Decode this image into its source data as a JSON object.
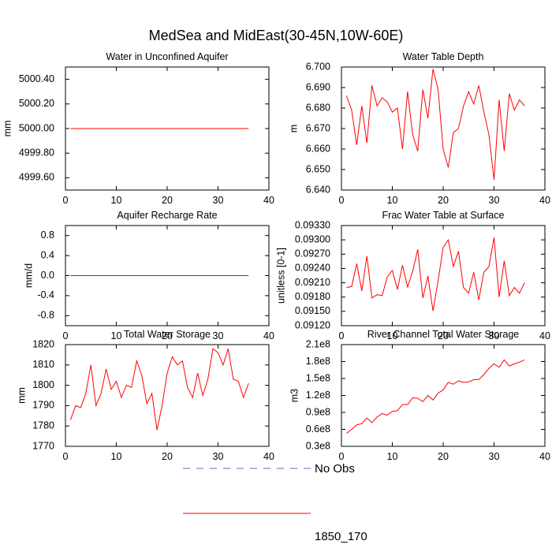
{
  "figure": {
    "title": "MedSea and MidEast(30-45N,10W-60E)",
    "legend": [
      {
        "label": "No Obs",
        "color": "#6666cc",
        "style": "dashed"
      },
      {
        "label": "1850_170",
        "color": "#ff0000",
        "style": "solid"
      }
    ]
  },
  "chart_data": [
    {
      "type": "line",
      "title": "Water in Unconfined Aquifer",
      "ylabel": "mm",
      "xlim": [
        0,
        40
      ],
      "xticks": [
        0,
        10,
        20,
        30,
        40
      ],
      "xtick_labels": [
        "0",
        "10",
        "20",
        "30",
        "40"
      ],
      "ylim": [
        4999.5,
        5000.5
      ],
      "yticks": [
        4999.6,
        4999.8,
        5000.0,
        5000.2,
        5000.4
      ],
      "ytick_labels": [
        "4999.60",
        "4999.80",
        "5000.00",
        "5000.20",
        "5000.40"
      ],
      "series": [
        {
          "name": "1850_170",
          "color": "#ff0000",
          "x": [
            1,
            36
          ],
          "y": [
            5000.0,
            5000.0
          ]
        }
      ]
    },
    {
      "type": "line",
      "title": "Water Table Depth",
      "ylabel": "m",
      "xlim": [
        0,
        40
      ],
      "xticks": [
        0,
        10,
        20,
        30,
        40
      ],
      "xtick_labels": [
        "0",
        "10",
        "20",
        "30",
        "40"
      ],
      "ylim": [
        6.64,
        6.7
      ],
      "yticks": [
        6.64,
        6.65,
        6.66,
        6.67,
        6.68,
        6.69,
        6.7
      ],
      "ytick_labels": [
        "6.640",
        "6.650",
        "6.660",
        "6.670",
        "6.680",
        "6.690",
        "6.700"
      ],
      "series": [
        {
          "name": "1850_170",
          "color": "#ff0000",
          "x": [
            1,
            2,
            3,
            4,
            5,
            6,
            7,
            8,
            9,
            10,
            11,
            12,
            13,
            14,
            15,
            16,
            17,
            18,
            19,
            20,
            21,
            22,
            23,
            24,
            25,
            26,
            27,
            28,
            29,
            30,
            31,
            32,
            33,
            34,
            35,
            36
          ],
          "y": [
            6.686,
            6.679,
            6.662,
            6.681,
            6.663,
            6.691,
            6.681,
            6.685,
            6.683,
            6.678,
            6.68,
            6.66,
            6.688,
            6.667,
            6.659,
            6.689,
            6.675,
            6.699,
            6.689,
            6.66,
            6.651,
            6.668,
            6.67,
            6.681,
            6.688,
            6.682,
            6.691,
            6.678,
            6.667,
            6.645,
            6.684,
            6.659,
            6.687,
            6.679,
            6.684,
            6.681
          ]
        }
      ]
    },
    {
      "type": "line",
      "title": "Aquifer Recharge Rate",
      "ylabel": "mm/d",
      "xlim": [
        0,
        40
      ],
      "xticks": [
        0,
        10,
        20,
        30,
        40
      ],
      "xtick_labels": [
        "0",
        "10",
        "20",
        "30",
        "40"
      ],
      "ylim": [
        -1.0,
        1.0
      ],
      "yticks": [
        -0.8,
        -0.4,
        0.0,
        0.4,
        0.8
      ],
      "ytick_labels": [
        "-0.8",
        "-0.4",
        "0.0",
        "0.4",
        "0.8"
      ],
      "series": [
        {
          "name": "1850_170",
          "color": "#ff0000",
          "x": [
            1,
            36
          ],
          "y": [
            0.0,
            0.0
          ]
        }
      ]
    },
    {
      "type": "line",
      "title": "Frac Water Table at Surface",
      "ylabel": "unitless [0-1]",
      "xlim": [
        0,
        40
      ],
      "xticks": [
        0,
        10,
        20,
        30,
        40
      ],
      "xtick_labels": [
        "0",
        "10",
        "20",
        "30",
        "40"
      ],
      "ylim": [
        0.0912,
        0.0933
      ],
      "yticks": [
        0.0912,
        0.0915,
        0.0918,
        0.0921,
        0.0924,
        0.0927,
        0.093,
        0.0933
      ],
      "ytick_labels": [
        "0.09120",
        "0.09150",
        "0.09180",
        "0.09210",
        "0.09240",
        "0.09270",
        "0.09300",
        "0.09330"
      ],
      "series": [
        {
          "name": "1850_170",
          "color": "#ff0000",
          "x": [
            1,
            2,
            3,
            4,
            5,
            6,
            7,
            8,
            9,
            10,
            11,
            12,
            13,
            14,
            15,
            16,
            17,
            18,
            19,
            20,
            21,
            22,
            23,
            24,
            25,
            26,
            27,
            28,
            29,
            30,
            31,
            32,
            33,
            34,
            35,
            36
          ],
          "y": [
            0.092,
            0.09202,
            0.0925,
            0.09193,
            0.09266,
            0.09178,
            0.09185,
            0.09183,
            0.09222,
            0.09236,
            0.09196,
            0.09247,
            0.09201,
            0.09234,
            0.0928,
            0.09178,
            0.09224,
            0.09151,
            0.09214,
            0.09284,
            0.093,
            0.09244,
            0.09276,
            0.092,
            0.09188,
            0.09232,
            0.09174,
            0.09232,
            0.09244,
            0.09305,
            0.0918,
            0.09256,
            0.09183,
            0.092,
            0.09188,
            0.0921
          ]
        }
      ]
    },
    {
      "type": "line",
      "title": "Total Water Storage",
      "ylabel": "mm",
      "xlim": [
        0,
        40
      ],
      "xticks": [
        0,
        10,
        20,
        30,
        40
      ],
      "xtick_labels": [
        "0",
        "10",
        "20",
        "30",
        "40"
      ],
      "ylim": [
        1770,
        1820
      ],
      "yticks": [
        1770,
        1780,
        1790,
        1800,
        1810,
        1820
      ],
      "ytick_labels": [
        "1770",
        "1780",
        "1790",
        "1800",
        "1810",
        "1820"
      ],
      "series": [
        {
          "name": "1850_170",
          "color": "#ff0000",
          "x": [
            1,
            2,
            3,
            4,
            5,
            6,
            7,
            8,
            9,
            10,
            11,
            12,
            13,
            14,
            15,
            16,
            17,
            18,
            19,
            20,
            21,
            22,
            23,
            24,
            25,
            26,
            27,
            28,
            29,
            30,
            31,
            32,
            33,
            34,
            35,
            36
          ],
          "y": [
            1783,
            1790,
            1789,
            1796,
            1810,
            1790,
            1796,
            1808,
            1798,
            1802,
            1794,
            1800,
            1799,
            1812,
            1805,
            1791,
            1796,
            1778,
            1790,
            1806,
            1814,
            1810,
            1812,
            1799,
            1794,
            1806,
            1795,
            1803,
            1818,
            1816,
            1810,
            1818,
            1803,
            1802,
            1794,
            1801
          ]
        }
      ]
    },
    {
      "type": "line",
      "title": "River Channel Total Water Storage",
      "ylabel": "m3",
      "xlim": [
        0,
        40
      ],
      "xticks": [
        0,
        10,
        20,
        30,
        40
      ],
      "xtick_labels": [
        "0",
        "10",
        "20",
        "30",
        "40"
      ],
      "ylim": [
        30000000,
        210000000
      ],
      "yticks": [
        30000000,
        60000000,
        90000000,
        120000000,
        150000000,
        180000000,
        210000000
      ],
      "ytick_labels": [
        "0.3e8",
        "0.6e8",
        "0.9e8",
        "1.2e8",
        "1.5e8",
        "1.8e8",
        "2.1e8"
      ],
      "series": [
        {
          "name": "1850_170",
          "color": "#ff0000",
          "x": [
            1,
            2,
            3,
            4,
            5,
            6,
            7,
            8,
            9,
            10,
            11,
            12,
            13,
            14,
            15,
            16,
            17,
            18,
            19,
            20,
            21,
            22,
            23,
            24,
            25,
            26,
            27,
            28,
            29,
            30,
            31,
            32,
            33,
            34,
            35,
            36
          ],
          "y": [
            53000000,
            60000000,
            68000000,
            70000000,
            80000000,
            72000000,
            82000000,
            88000000,
            85000000,
            92000000,
            93000000,
            104000000,
            104000000,
            116000000,
            115000000,
            109000000,
            120000000,
            112000000,
            124000000,
            130000000,
            143000000,
            140000000,
            146000000,
            143000000,
            144000000,
            148000000,
            148000000,
            157000000,
            168000000,
            176000000,
            170000000,
            183000000,
            172000000,
            176000000,
            179000000,
            183000000
          ]
        }
      ]
    }
  ]
}
